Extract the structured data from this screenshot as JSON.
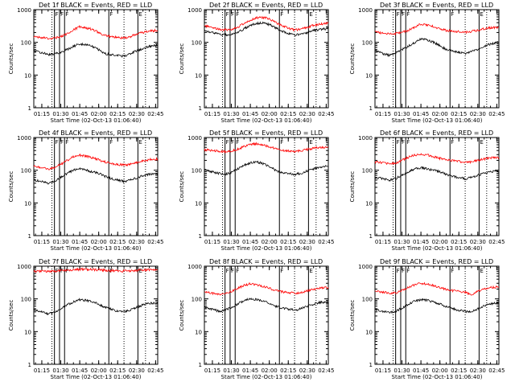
{
  "figure": {
    "x_start": "01:08:40",
    "x_end": "02:46:40",
    "x_ticks": [
      "01:15",
      "01:30",
      "01:45",
      "02:00",
      "02:15",
      "02:30",
      "02:45"
    ],
    "y_ticks": [
      "1",
      "10",
      "100",
      "1000"
    ],
    "ylim": [
      1,
      1000
    ],
    "y_scale": "log",
    "xlabel": "Start Time (02-Oct-13 01:06:40)",
    "ylabel": "Counts/sec",
    "solid_markers": [
      {
        "time": "01:25",
        "label": "F"
      },
      {
        "time": "01:29",
        "label": "F"
      },
      {
        "time": "01:33",
        "label": "F"
      },
      {
        "time": "02:08",
        "label": "F"
      },
      {
        "time": "02:31",
        "label": "E"
      }
    ],
    "dotted_markers": [
      "01:23",
      "02:20",
      "02:37"
    ],
    "colors": {
      "events": "#000000",
      "lld": "#ff0000",
      "axes": "#000000"
    }
  },
  "chart_data": [
    {
      "type": "line",
      "title": "Det 1f BLACK = Events, RED = LLD",
      "series": [
        {
          "color": "#000000",
          "x": [
            "01:09",
            "01:15",
            "01:20",
            "01:25",
            "01:30",
            "01:35",
            "01:40",
            "01:45",
            "01:50",
            "01:55",
            "02:00",
            "02:05",
            "02:10",
            "02:15",
            "02:20",
            "02:25",
            "02:30",
            "02:35",
            "02:40",
            "02:45"
          ],
          "y": [
            55,
            48,
            42,
            45,
            50,
            60,
            75,
            90,
            85,
            75,
            60,
            45,
            42,
            40,
            38,
            45,
            55,
            65,
            75,
            80
          ]
        },
        {
          "color": "#ff0000",
          "x": [
            "01:09",
            "01:15",
            "01:20",
            "01:25",
            "01:30",
            "01:35",
            "01:40",
            "01:45",
            "01:50",
            "01:55",
            "02:00",
            "02:05",
            "02:10",
            "02:15",
            "02:20",
            "02:25",
            "02:30",
            "02:35",
            "02:40",
            "02:45"
          ],
          "y": [
            150,
            140,
            130,
            135,
            150,
            180,
            240,
            300,
            280,
            250,
            200,
            160,
            150,
            140,
            135,
            150,
            180,
            200,
            220,
            230
          ]
        }
      ]
    },
    {
      "type": "line",
      "title": "Det 2f BLACK = Events, RED = LLD",
      "series": [
        {
          "color": "#000000",
          "x": [
            "01:09",
            "01:15",
            "01:20",
            "01:25",
            "01:30",
            "01:35",
            "01:40",
            "01:45",
            "01:50",
            "01:55",
            "02:00",
            "02:05",
            "02:10",
            "02:15",
            "02:20",
            "02:25",
            "02:30",
            "02:35",
            "02:40",
            "02:45"
          ],
          "y": [
            230,
            200,
            180,
            170,
            175,
            200,
            260,
            330,
            380,
            390,
            350,
            280,
            220,
            190,
            170,
            175,
            200,
            230,
            250,
            260
          ]
        },
        {
          "color": "#ff0000",
          "x": [
            "01:09",
            "01:15",
            "01:20",
            "01:25",
            "01:30",
            "01:35",
            "01:40",
            "01:45",
            "01:50",
            "01:55",
            "02:00",
            "02:05",
            "02:10",
            "02:15",
            "02:20",
            "02:25",
            "02:30",
            "02:35",
            "02:40",
            "02:45"
          ],
          "y": [
            320,
            280,
            250,
            240,
            250,
            290,
            380,
            480,
            560,
            580,
            520,
            410,
            320,
            270,
            240,
            250,
            290,
            330,
            360,
            380
          ]
        }
      ]
    },
    {
      "type": "line",
      "title": "Det 3f BLACK = Events, RED = LLD",
      "series": [
        {
          "color": "#000000",
          "x": [
            "01:09",
            "01:15",
            "01:20",
            "01:25",
            "01:30",
            "01:35",
            "01:40",
            "01:45",
            "01:50",
            "01:55",
            "02:00",
            "02:05",
            "02:10",
            "02:15",
            "02:20",
            "02:25",
            "02:30",
            "02:35",
            "02:40",
            "02:45"
          ],
          "y": [
            55,
            45,
            40,
            48,
            60,
            75,
            100,
            130,
            120,
            100,
            80,
            60,
            55,
            50,
            45,
            52,
            62,
            75,
            90,
            100
          ]
        },
        {
          "color": "#ff0000",
          "x": [
            "01:09",
            "01:15",
            "01:20",
            "01:25",
            "01:30",
            "01:35",
            "01:40",
            "01:45",
            "01:50",
            "01:55",
            "02:00",
            "02:05",
            "02:10",
            "02:15",
            "02:20",
            "02:25",
            "02:30",
            "02:35",
            "02:40",
            "02:45"
          ],
          "y": [
            210,
            190,
            180,
            185,
            200,
            230,
            290,
            360,
            340,
            300,
            260,
            230,
            220,
            210,
            205,
            215,
            235,
            260,
            280,
            290
          ]
        }
      ]
    },
    {
      "type": "line",
      "title": "Det 4f BLACK = Events, RED = LLD",
      "series": [
        {
          "color": "#000000",
          "x": [
            "01:09",
            "01:15",
            "01:20",
            "01:25",
            "01:30",
            "01:35",
            "01:40",
            "01:45",
            "01:50",
            "01:55",
            "02:00",
            "02:05",
            "02:10",
            "02:15",
            "02:20",
            "02:25",
            "02:30",
            "02:35",
            "02:40",
            "02:45"
          ],
          "y": [
            50,
            45,
            40,
            45,
            60,
            80,
            100,
            110,
            100,
            90,
            80,
            65,
            55,
            50,
            45,
            50,
            58,
            68,
            76,
            80
          ]
        },
        {
          "color": "#ff0000",
          "x": [
            "01:09",
            "01:15",
            "01:20",
            "01:25",
            "01:30",
            "01:35",
            "01:40",
            "01:45",
            "01:50",
            "01:55",
            "02:00",
            "02:05",
            "02:10",
            "02:15",
            "02:20",
            "02:25",
            "02:30",
            "02:35",
            "02:40",
            "02:45"
          ],
          "y": [
            130,
            120,
            110,
            120,
            150,
            200,
            260,
            290,
            270,
            240,
            210,
            180,
            160,
            150,
            145,
            150,
            170,
            190,
            210,
            220
          ]
        }
      ]
    },
    {
      "type": "line",
      "title": "Det 5f BLACK = Events, RED = LLD",
      "series": [
        {
          "color": "#000000",
          "x": [
            "01:09",
            "01:15",
            "01:20",
            "01:25",
            "01:30",
            "01:35",
            "01:40",
            "01:45",
            "01:50",
            "01:55",
            "02:00",
            "02:05",
            "02:10",
            "02:15",
            "02:20",
            "02:25",
            "02:30",
            "02:35",
            "02:40",
            "02:45"
          ],
          "y": [
            100,
            90,
            80,
            75,
            85,
            110,
            140,
            170,
            180,
            160,
            130,
            100,
            85,
            80,
            75,
            80,
            95,
            110,
            125,
            130
          ]
        },
        {
          "color": "#ff0000",
          "x": [
            "01:09",
            "01:15",
            "01:20",
            "01:25",
            "01:30",
            "01:35",
            "01:40",
            "01:45",
            "01:50",
            "01:55",
            "02:00",
            "02:05",
            "02:10",
            "02:15",
            "02:20",
            "02:25",
            "02:30",
            "02:35",
            "02:40",
            "02:45"
          ],
          "y": [
            420,
            400,
            380,
            370,
            390,
            440,
            530,
            620,
            650,
            600,
            520,
            450,
            410,
            390,
            380,
            390,
            430,
            470,
            500,
            510
          ]
        }
      ]
    },
    {
      "type": "line",
      "title": "Det 6f BLACK = Events, RED = LLD",
      "series": [
        {
          "color": "#000000",
          "x": [
            "01:09",
            "01:15",
            "01:20",
            "01:25",
            "01:30",
            "01:35",
            "01:40",
            "01:45",
            "01:50",
            "01:55",
            "02:00",
            "02:05",
            "02:10",
            "02:15",
            "02:20",
            "02:25",
            "02:30",
            "02:35",
            "02:40",
            "02:45"
          ],
          "y": [
            60,
            55,
            50,
            55,
            70,
            90,
            110,
            120,
            110,
            100,
            90,
            75,
            65,
            60,
            55,
            60,
            70,
            80,
            90,
            95
          ]
        },
        {
          "color": "#ff0000",
          "x": [
            "01:09",
            "01:15",
            "01:20",
            "01:25",
            "01:30",
            "01:35",
            "01:40",
            "01:45",
            "01:50",
            "01:55",
            "02:00",
            "02:05",
            "02:10",
            "02:15",
            "02:20",
            "02:25",
            "02:30",
            "02:35",
            "02:40",
            "02:45"
          ],
          "y": [
            180,
            170,
            160,
            165,
            200,
            250,
            290,
            310,
            290,
            260,
            230,
            210,
            195,
            185,
            175,
            180,
            200,
            220,
            240,
            245
          ]
        }
      ]
    },
    {
      "type": "line",
      "title": "Det 7f BLACK = Events, RED = LLD",
      "series": [
        {
          "color": "#000000",
          "x": [
            "01:09",
            "01:15",
            "01:20",
            "01:25",
            "01:30",
            "01:35",
            "01:40",
            "01:45",
            "01:50",
            "01:55",
            "02:00",
            "02:05",
            "02:10",
            "02:15",
            "02:20",
            "02:25",
            "02:30",
            "02:35",
            "02:40",
            "02:45"
          ],
          "y": [
            45,
            40,
            35,
            38,
            50,
            65,
            80,
            95,
            90,
            80,
            70,
            55,
            48,
            42,
            40,
            45,
            55,
            65,
            72,
            75
          ]
        },
        {
          "color": "#ff0000",
          "x": [
            "01:09",
            "01:15",
            "01:20",
            "01:25",
            "01:30",
            "01:35",
            "01:40",
            "01:45",
            "01:50",
            "01:55",
            "02:00",
            "02:05",
            "02:10",
            "02:15",
            "02:20",
            "02:25",
            "02:30",
            "02:35",
            "02:40",
            "02:45"
          ],
          "y": [
            700,
            700,
            690,
            700,
            720,
            750,
            780,
            800,
            800,
            790,
            770,
            750,
            730,
            720,
            710,
            720,
            740,
            760,
            770,
            780
          ]
        }
      ]
    },
    {
      "type": "line",
      "title": "Det 8f BLACK = Events, RED = LLD",
      "series": [
        {
          "color": "#000000",
          "x": [
            "01:09",
            "01:15",
            "01:20",
            "01:25",
            "01:30",
            "01:35",
            "01:40",
            "01:45",
            "01:50",
            "01:55",
            "02:00",
            "02:05",
            "02:10",
            "02:15",
            "02:20",
            "02:25",
            "02:30",
            "02:35",
            "02:40",
            "02:45"
          ],
          "y": [
            55,
            48,
            42,
            45,
            55,
            70,
            90,
            100,
            95,
            85,
            75,
            60,
            52,
            48,
            45,
            50,
            60,
            70,
            78,
            80
          ]
        },
        {
          "color": "#ff0000",
          "x": [
            "01:09",
            "01:15",
            "01:20",
            "01:25",
            "01:30",
            "01:35",
            "01:40",
            "01:45",
            "01:50",
            "01:55",
            "02:00",
            "02:05",
            "02:10",
            "02:15",
            "02:20",
            "02:25",
            "02:30",
            "02:35",
            "02:40",
            "02:45"
          ],
          "y": [
            160,
            150,
            140,
            145,
            170,
            210,
            260,
            290,
            270,
            240,
            210,
            180,
            165,
            155,
            150,
            155,
            175,
            195,
            215,
            225
          ]
        }
      ]
    },
    {
      "type": "line",
      "title": "Det 9f BLACK = Events, RED = LLD",
      "series": [
        {
          "color": "#000000",
          "x": [
            "01:09",
            "01:15",
            "01:20",
            "01:25",
            "01:30",
            "01:35",
            "01:40",
            "01:45",
            "01:50",
            "01:55",
            "02:00",
            "02:05",
            "02:10",
            "02:15",
            "02:20",
            "02:25",
            "02:30",
            "02:35",
            "02:40",
            "02:45"
          ],
          "y": [
            48,
            42,
            38,
            42,
            52,
            68,
            85,
            95,
            90,
            80,
            70,
            58,
            50,
            45,
            42,
            40,
            50,
            60,
            70,
            75
          ]
        },
        {
          "color": "#ff0000",
          "x": [
            "01:09",
            "01:15",
            "01:20",
            "01:25",
            "01:30",
            "01:35",
            "01:40",
            "01:45",
            "01:50",
            "01:55",
            "02:00",
            "02:05",
            "02:10",
            "02:15",
            "02:20",
            "02:25",
            "02:30",
            "02:35",
            "02:40",
            "02:45"
          ],
          "y": [
            170,
            160,
            150,
            155,
            180,
            220,
            270,
            300,
            285,
            255,
            225,
            195,
            180,
            170,
            160,
            130,
            170,
            200,
            220,
            230
          ]
        }
      ]
    }
  ]
}
